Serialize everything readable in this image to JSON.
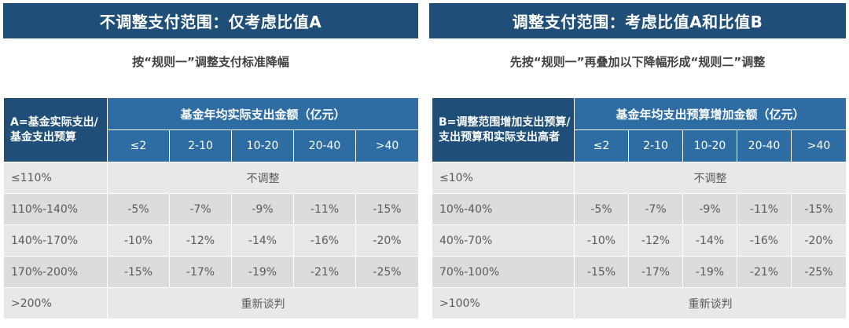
{
  "left": {
    "title": "不调整支付范围：仅考虑比值A",
    "subtitle": "按“规则一”调整支付标准降幅",
    "corner_label": "A=基金实际支出/基金支出预算",
    "header": "基金年均实际支出金额（亿元）",
    "columns": [
      "≤2",
      "2-10",
      "10-20",
      "20-40",
      ">40"
    ],
    "rows": [
      {
        "label": "≤110%",
        "merged": "不调整"
      },
      {
        "label": "110%-140%",
        "values": [
          "-5%",
          "-7%",
          "-9%",
          "-11%",
          "-15%"
        ]
      },
      {
        "label": "140%-170%",
        "values": [
          "-10%",
          "-12%",
          "-14%",
          "-16%",
          "-20%"
        ]
      },
      {
        "label": "170%-200%",
        "values": [
          "-15%",
          "-17%",
          "-19%",
          "-21%",
          "-25%"
        ]
      },
      {
        "label": ">200%",
        "merged": "重新谈判"
      }
    ]
  },
  "right": {
    "title": "调整支付范围：考虑比值A和比值B",
    "subtitle": "先按“规则一”再叠加以下降幅形成“规则二”调整",
    "corner_label": "B=调整范围增加支出预算/支出预算和实际支出高者",
    "header": "基金年均支出预算增加金额（亿元）",
    "columns": [
      "≤2",
      "2-10",
      "10-20",
      "20-40",
      ">40"
    ],
    "rows": [
      {
        "label": "≤10%",
        "merged": "不调整"
      },
      {
        "label": "10%-40%",
        "values": [
          "-5%",
          "-7%",
          "-9%",
          "-11%",
          "-15%"
        ]
      },
      {
        "label": "40%-70%",
        "values": [
          "-10%",
          "-12%",
          "-14%",
          "-16%",
          "-20%"
        ]
      },
      {
        "label": "70%-100%",
        "values": [
          "-15%",
          "-17%",
          "-19%",
          "-21%",
          "-25%"
        ]
      },
      {
        "label": ">100%",
        "merged": "重新谈判"
      }
    ]
  },
  "colors": {
    "banner": "#1f4e79",
    "header": "#2e6ca4",
    "cell_light": "#e8e8e8",
    "cell_dark": "#dcdcdc"
  }
}
